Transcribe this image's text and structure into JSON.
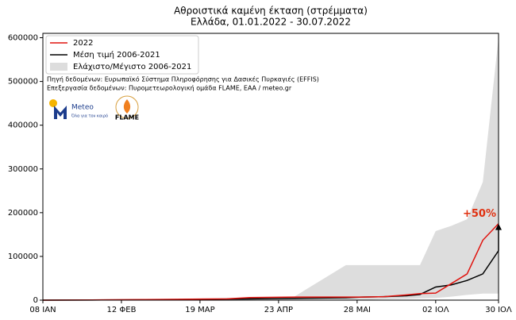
{
  "chart_data": {
    "type": "line",
    "title": "Αθροιστικά καμένη έκταση (στρέμματα)",
    "subtitle": "Ελλάδα, 01.01.2022 - 30.07.2022",
    "source_lines": [
      "Πηγή δεδομένων: Ευρωπαϊκό Σύστημα Πληροφόρησης για Δασικές Πυρκαγιές (EFFIS)",
      "Επεξεργασία δεδομένων: Πυρομετεωρολογική ομάδα FLAME, ΕΑΑ / meteo.gr"
    ],
    "logos": [
      "Meteo",
      "Όλα για τον καιρό",
      "FLAME"
    ],
    "annotation": "+50%",
    "x": [
      8,
      30,
      60,
      90,
      100,
      120,
      143,
      150,
      160,
      170,
      176,
      183,
      190,
      197,
      204,
      211
    ],
    "series": [
      {
        "name": "2022",
        "color": "#e0140f",
        "values": [
          0,
          500,
          1500,
          3000,
          6000,
          7000,
          7000,
          7000,
          8000,
          12000,
          15000,
          16000,
          38000,
          60000,
          137000,
          175000
        ]
      },
      {
        "name": "Μέση τιμή 2006-2021",
        "color": "#000000",
        "values": [
          0,
          300,
          1000,
          2500,
          3000,
          4000,
          5500,
          7000,
          8000,
          10000,
          13000,
          30000,
          35000,
          45000,
          60000,
          113000
        ]
      },
      {
        "name": "Ελάχιστο/Μέγιστο 2006-2021",
        "color": "#dddddd",
        "high": [
          0,
          1000,
          3000,
          5000,
          6000,
          8000,
          80000,
          80000,
          80000,
          80000,
          80000,
          158000,
          170000,
          185000,
          270000,
          600000
        ],
        "low": [
          0,
          0,
          0,
          0,
          0,
          0,
          0,
          0,
          2000,
          3000,
          4000,
          5000,
          8000,
          12000,
          15000,
          15000
        ]
      }
    ],
    "xlim": [
      8,
      211
    ],
    "xticks": [
      {
        "value": 8,
        "label": "08 ΙΑΝ"
      },
      {
        "value": 43,
        "label": "12 ΦΕΒ"
      },
      {
        "value": 78,
        "label": "19 ΜΑΡ"
      },
      {
        "value": 113,
        "label": "23 ΑΠΡ"
      },
      {
        "value": 148,
        "label": "28 ΜΑΙ"
      },
      {
        "value": 183,
        "label": "02 ΙΟΛ"
      },
      {
        "value": 211,
        "label": "30 ΙΟΛ"
      }
    ],
    "ylim": [
      0,
      610000
    ],
    "yticks": [
      0,
      100000,
      200000,
      300000,
      400000,
      500000,
      600000
    ],
    "legend": "upper left"
  }
}
